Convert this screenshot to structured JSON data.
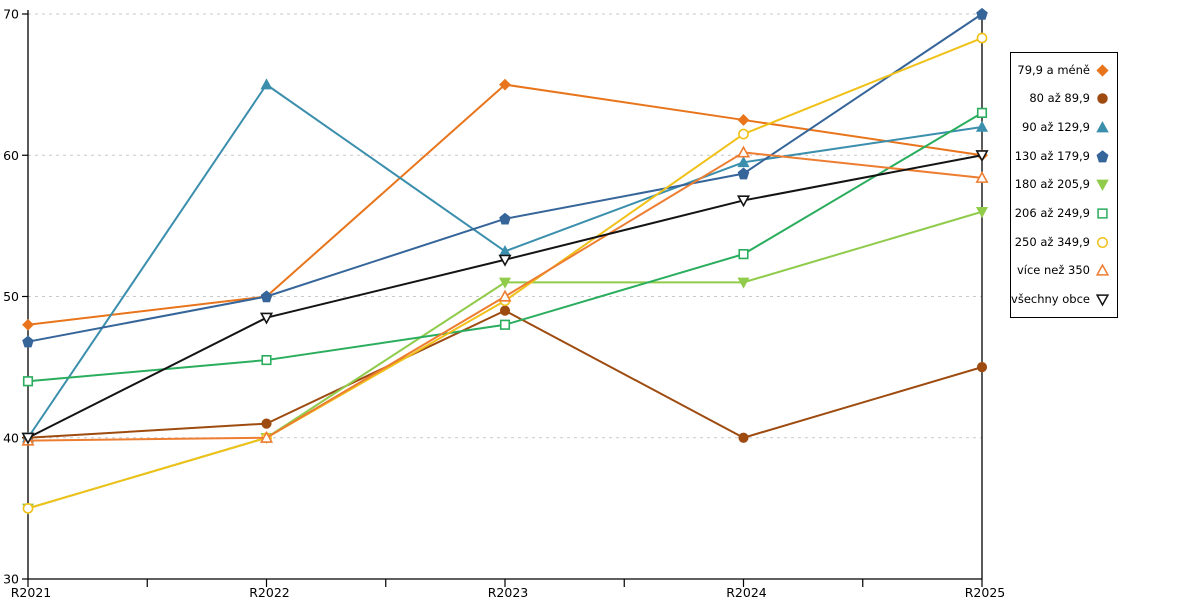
{
  "chart_data": {
    "type": "line",
    "title": "",
    "xlabel": "",
    "ylabel": "",
    "x_categories": [
      "R2021",
      "R2022",
      "R2023",
      "R2024",
      "R2025"
    ],
    "y_ticks": [
      30,
      40,
      50,
      60,
      70
    ],
    "ylim": [
      30,
      70
    ],
    "grid": "horizontal dashed gridlines at 40,50,60,70",
    "legend_position": "right",
    "series": [
      {
        "name": "79,9 a méně",
        "color": "#E8751C",
        "marker": "diamond",
        "filled": true,
        "values": [
          48,
          50,
          65,
          62.5,
          60
        ]
      },
      {
        "name": "80 až 89,9",
        "color": "#9E4B10",
        "marker": "circle",
        "filled": true,
        "values": [
          40,
          41,
          49,
          40,
          45
        ]
      },
      {
        "name": "90 až 129,9",
        "color": "#3B8FAD",
        "marker": "triangle-up",
        "filled": true,
        "values": [
          40,
          65,
          53.2,
          59.5,
          62
        ]
      },
      {
        "name": "130 až 179,9",
        "color": "#36659A",
        "marker": "pentagon",
        "filled": true,
        "values": [
          46.8,
          50,
          55.5,
          58.7,
          70
        ]
      },
      {
        "name": "180 až 205,9",
        "color": "#90CB4B",
        "marker": "triangle-down",
        "filled": true,
        "values": [
          35,
          40,
          51,
          51,
          56
        ]
      },
      {
        "name": "206 až 249,9",
        "color": "#2BAD5E",
        "marker": "square",
        "filled": false,
        "values": [
          44,
          45.5,
          48,
          53,
          63
        ]
      },
      {
        "name": "250 až 349,9",
        "color": "#EFC119",
        "marker": "circle",
        "filled": false,
        "values": [
          35,
          40,
          49.7,
          61.5,
          68.3
        ]
      },
      {
        "name": "více než 350",
        "color": "#ED7D31",
        "marker": "triangle-up",
        "filled": false,
        "values": [
          39.8,
          40,
          50,
          60.2,
          58.4
        ]
      },
      {
        "name": "všechny obce",
        "color": "#141414",
        "marker": "triangle-down",
        "filled": false,
        "values": [
          40,
          48.5,
          52.6,
          56.8,
          60
        ]
      }
    ]
  },
  "colors": {
    "background": "#FFFFFF",
    "gridline": "#C9C9C9",
    "axis": "#000000",
    "text": "#000000",
    "legend_border": "#000000"
  }
}
